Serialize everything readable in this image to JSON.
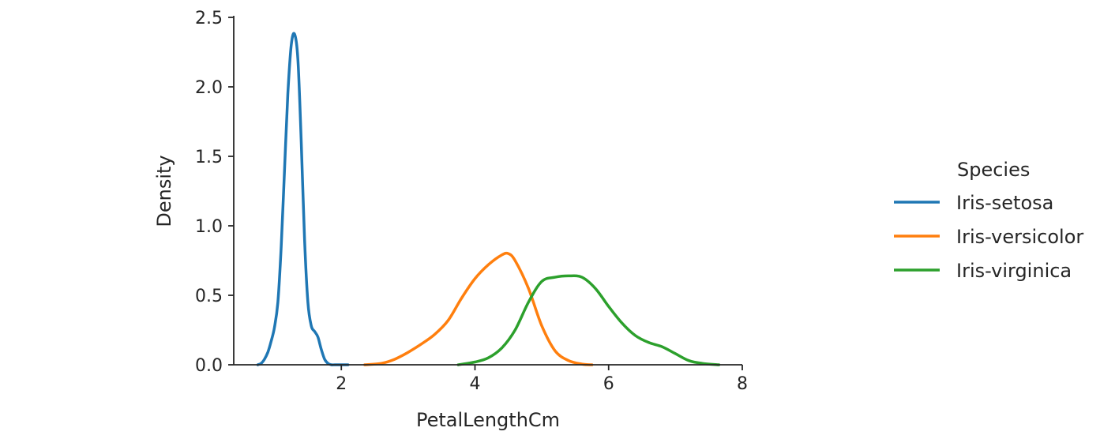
{
  "chart_data": {
    "type": "line",
    "title": "",
    "xlabel": "PetalLengthCm",
    "ylabel": "Density",
    "xlim": [
      0.39,
      8.0
    ],
    "ylim": [
      0,
      2.5
    ],
    "xticks": [
      2,
      4,
      6,
      8
    ],
    "xtick_labels": [
      "2",
      "4",
      "6",
      "8"
    ],
    "yticks": [
      0,
      0.5,
      1.0,
      1.5,
      2.0,
      2.5
    ],
    "ytick_labels": [
      "0.0",
      "0.5",
      "1.0",
      "1.5",
      "2.0",
      "2.5"
    ],
    "grid": false,
    "legend": {
      "title": "Species",
      "placement": "right, outside"
    },
    "series": [
      {
        "name": "Iris-setosa",
        "color": "#1f77b4",
        "x": [
          0.75,
          0.8,
          0.85,
          0.9,
          0.95,
          1.0,
          1.05,
          1.1,
          1.15,
          1.2,
          1.25,
          1.3,
          1.35,
          1.4,
          1.45,
          1.5,
          1.55,
          1.6,
          1.65,
          1.7,
          1.75,
          1.8,
          1.85,
          1.9,
          1.95,
          2.0,
          2.05,
          2.1
        ],
        "y": [
          0.0,
          0.01,
          0.04,
          0.09,
          0.17,
          0.27,
          0.45,
          0.85,
          1.4,
          1.95,
          2.3,
          2.38,
          2.2,
          1.6,
          0.9,
          0.45,
          0.28,
          0.24,
          0.2,
          0.11,
          0.04,
          0.01,
          0.0,
          0.0,
          0.0,
          0.0,
          0.0,
          0.0
        ]
      },
      {
        "name": "Iris-versicolor",
        "color": "#ff7f0e",
        "x": [
          2.35,
          2.6,
          2.8,
          3.0,
          3.2,
          3.4,
          3.6,
          3.8,
          4.0,
          4.2,
          4.4,
          4.5,
          4.6,
          4.8,
          5.0,
          5.2,
          5.4,
          5.6,
          5.75
        ],
        "y": [
          0.0,
          0.01,
          0.04,
          0.09,
          0.15,
          0.22,
          0.32,
          0.48,
          0.62,
          0.72,
          0.79,
          0.8,
          0.75,
          0.55,
          0.28,
          0.1,
          0.03,
          0.005,
          0.0
        ]
      },
      {
        "name": "Iris-virginica",
        "color": "#2ca02c",
        "x": [
          3.75,
          4.0,
          4.2,
          4.4,
          4.6,
          4.8,
          5.0,
          5.2,
          5.4,
          5.6,
          5.8,
          6.0,
          6.2,
          6.4,
          6.6,
          6.8,
          7.0,
          7.2,
          7.4,
          7.65
        ],
        "y": [
          0.0,
          0.02,
          0.05,
          0.12,
          0.25,
          0.45,
          0.6,
          0.63,
          0.64,
          0.63,
          0.55,
          0.42,
          0.3,
          0.21,
          0.16,
          0.13,
          0.08,
          0.03,
          0.01,
          0.0
        ]
      }
    ]
  }
}
